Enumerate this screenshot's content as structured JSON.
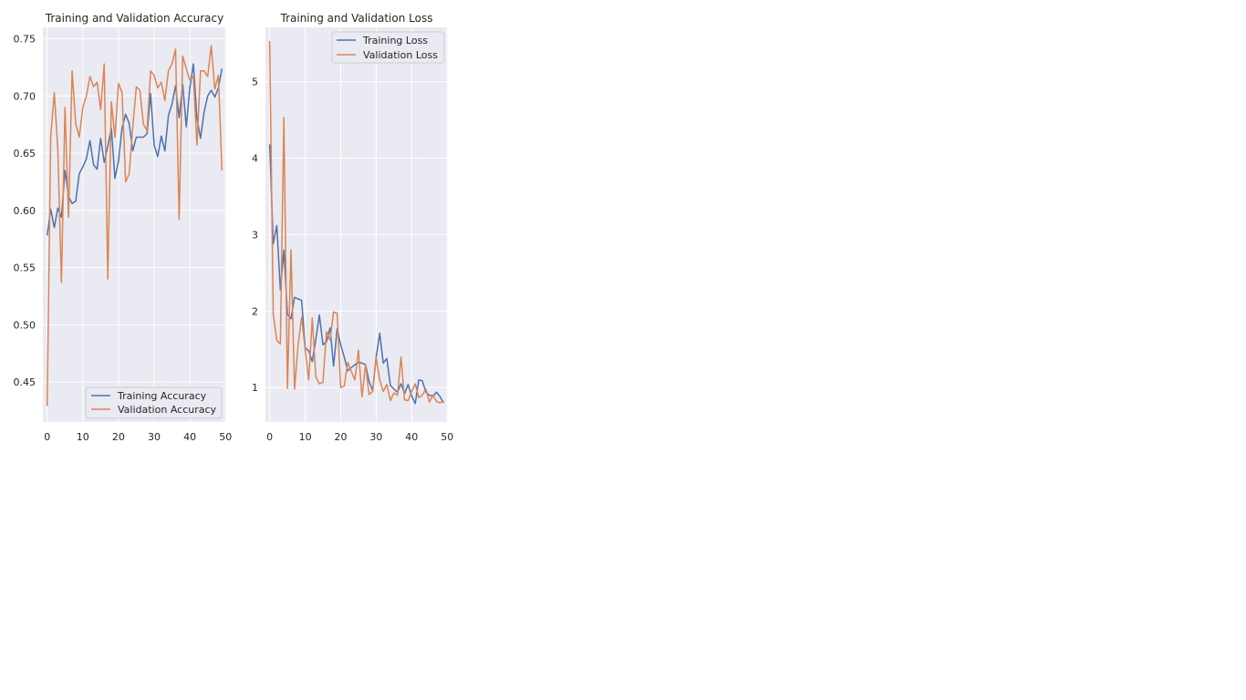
{
  "chart_data": [
    {
      "type": "line",
      "title": "Training and Validation Accuracy",
      "xlabel": "",
      "ylabel": "",
      "xlim": [
        -1.2,
        50.2
      ],
      "ylim": [
        0.415,
        0.76
      ],
      "xticks": [
        0,
        10,
        20,
        30,
        40,
        50
      ],
      "yticks": [
        0.45,
        0.5,
        0.55,
        0.6,
        0.65,
        0.7,
        0.75
      ],
      "ytick_labels": [
        "0.45",
        "0.50",
        "0.55",
        "0.60",
        "0.65",
        "0.70",
        "0.75"
      ],
      "grid": true,
      "legend_position": "bottom-right",
      "x": [
        0,
        1,
        2,
        3,
        4,
        5,
        6,
        7,
        8,
        9,
        10,
        11,
        12,
        13,
        14,
        15,
        16,
        17,
        18,
        19,
        20,
        21,
        22,
        23,
        24,
        25,
        26,
        27,
        28,
        29,
        30,
        31,
        32,
        33,
        34,
        35,
        36,
        37,
        38,
        39,
        40,
        41,
        42,
        43,
        44,
        45,
        46,
        47,
        48,
        49
      ],
      "series": [
        {
          "name": "Training Accuracy",
          "color": "#4c72b0",
          "values": [
            0.578,
            0.601,
            0.585,
            0.602,
            0.594,
            0.635,
            0.612,
            0.606,
            0.608,
            0.632,
            0.638,
            0.645,
            0.661,
            0.64,
            0.636,
            0.663,
            0.642,
            0.656,
            0.672,
            0.628,
            0.643,
            0.672,
            0.684,
            0.676,
            0.652,
            0.664,
            0.664,
            0.664,
            0.667,
            0.702,
            0.657,
            0.647,
            0.665,
            0.652,
            0.683,
            0.693,
            0.709,
            0.681,
            0.71,
            0.673,
            0.707,
            0.728,
            0.68,
            0.663,
            0.686,
            0.7,
            0.705,
            0.699,
            0.707,
            0.724
          ]
        },
        {
          "name": "Validation Accuracy",
          "color": "#dd8452",
          "values": [
            0.429,
            0.664,
            0.703,
            0.653,
            0.537,
            0.69,
            0.594,
            0.722,
            0.676,
            0.664,
            0.69,
            0.7,
            0.717,
            0.708,
            0.712,
            0.688,
            0.728,
            0.54,
            0.695,
            0.664,
            0.711,
            0.703,
            0.625,
            0.632,
            0.673,
            0.708,
            0.705,
            0.675,
            0.67,
            0.722,
            0.718,
            0.707,
            0.712,
            0.696,
            0.722,
            0.728,
            0.741,
            0.592,
            0.735,
            0.724,
            0.714,
            0.717,
            0.657,
            0.722,
            0.722,
            0.717,
            0.744,
            0.706,
            0.718,
            0.635
          ]
        }
      ]
    },
    {
      "type": "line",
      "title": "Training and Validation Loss",
      "xlabel": "",
      "ylabel": "",
      "xlim": [
        -1.2,
        50.2
      ],
      "ylim": [
        0.55,
        5.71
      ],
      "xticks": [
        0,
        10,
        20,
        30,
        40,
        50
      ],
      "yticks": [
        1,
        2,
        3,
        4,
        5
      ],
      "ytick_labels": [
        "1",
        "2",
        "3",
        "4",
        "5"
      ],
      "grid": true,
      "legend_position": "top-right",
      "x": [
        0,
        1,
        2,
        3,
        4,
        5,
        6,
        7,
        8,
        9,
        10,
        11,
        12,
        13,
        14,
        15,
        16,
        17,
        18,
        19,
        20,
        21,
        22,
        23,
        24,
        25,
        26,
        27,
        28,
        29,
        30,
        31,
        32,
        33,
        34,
        35,
        36,
        37,
        38,
        39,
        40,
        41,
        42,
        43,
        44,
        45,
        46,
        47,
        48,
        49
      ],
      "series": [
        {
          "name": "Training Loss",
          "color": "#4c72b0",
          "values": [
            4.18,
            2.88,
            3.12,
            2.28,
            2.8,
            1.96,
            1.9,
            2.18,
            2.16,
            2.14,
            1.52,
            1.48,
            1.34,
            1.63,
            1.95,
            1.56,
            1.6,
            1.78,
            1.28,
            1.77,
            1.56,
            1.4,
            1.22,
            1.26,
            1.3,
            1.33,
            1.32,
            1.3,
            1.08,
            0.96,
            1.4,
            1.71,
            1.32,
            1.38,
            1.03,
            0.98,
            0.94,
            1.05,
            0.92,
            1.04,
            0.89,
            0.79,
            1.1,
            1.09,
            0.94,
            0.9,
            0.89,
            0.94,
            0.88,
            0.8
          ]
        },
        {
          "name": "Validation Loss",
          "color": "#dd8452",
          "values": [
            5.53,
            1.96,
            1.62,
            1.57,
            4.53,
            0.99,
            2.8,
            0.98,
            1.56,
            1.92,
            1.5,
            1.1,
            1.91,
            1.14,
            1.05,
            1.07,
            1.73,
            1.62,
            1.99,
            1.97,
            1.0,
            1.02,
            1.33,
            1.21,
            1.1,
            1.49,
            0.88,
            1.3,
            0.91,
            0.95,
            1.39,
            1.1,
            0.95,
            1.04,
            0.83,
            0.93,
            0.9,
            1.4,
            0.84,
            0.83,
            0.95,
            1.05,
            0.87,
            0.9,
            0.98,
            0.81,
            0.9,
            0.82,
            0.8,
            0.83
          ]
        }
      ]
    }
  ]
}
